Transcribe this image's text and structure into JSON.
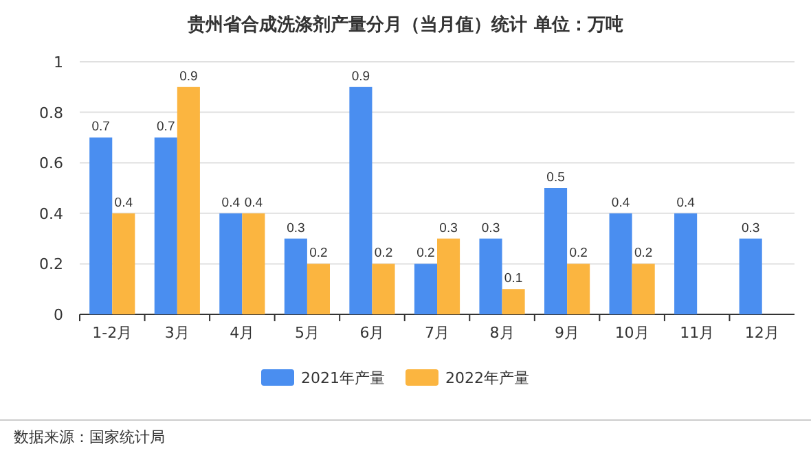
{
  "chart_data": {
    "type": "bar",
    "title": "贵州省合成洗涤剂产量分月（当月值）统计  单位：万吨",
    "categories": [
      "1-2月",
      "3月",
      "4月",
      "5月",
      "6月",
      "7月",
      "8月",
      "9月",
      "10月",
      "11月",
      "12月"
    ],
    "series": [
      {
        "name": "2021年产量",
        "color": "#4a8ef0",
        "values": [
          0.7,
          0.7,
          0.4,
          0.3,
          0.9,
          0.2,
          0.3,
          0.5,
          0.4,
          0.4,
          0.3
        ]
      },
      {
        "name": "2022年产量",
        "color": "#fbb540",
        "values": [
          0.4,
          0.9,
          0.4,
          0.2,
          0.2,
          0.3,
          0.1,
          0.2,
          0.2,
          null,
          null
        ]
      }
    ],
    "ylim": [
      0,
      1
    ],
    "yticks": [
      0,
      0.2,
      0.4,
      0.6,
      0.8,
      1
    ],
    "grid": "y",
    "legend": "bottom",
    "data_labels": true,
    "annotations": [
      "数据来源：国家统计局"
    ]
  }
}
